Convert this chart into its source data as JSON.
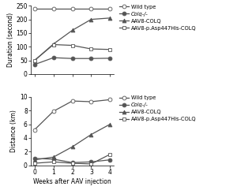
{
  "weeks": [
    0,
    1,
    2,
    3,
    4
  ],
  "duration": {
    "wild_type": [
      240,
      240,
      240,
      240,
      240
    ],
    "colq_ko": [
      35,
      60,
      57,
      57,
      58
    ],
    "aav8_colq": [
      50,
      110,
      160,
      200,
      205
    ],
    "aav8_mut": [
      50,
      108,
      105,
      92,
      90
    ]
  },
  "distance": {
    "wild_type": [
      5.2,
      7.9,
      9.4,
      9.3,
      9.6
    ],
    "colq_ko": [
      1.0,
      0.9,
      0.4,
      0.5,
      0.8
    ],
    "aav8_colq": [
      0.8,
      1.2,
      2.7,
      4.5,
      6.0
    ],
    "aav8_mut": [
      0.3,
      0.5,
      0.3,
      0.2,
      1.6
    ]
  },
  "duration_ylabel": "Duration (second)",
  "distance_ylabel": "Distance (km)",
  "xlabel": "Weeks after AAV injection",
  "duration_ylim": [
    0,
    250
  ],
  "duration_yticks": [
    0,
    50,
    100,
    150,
    200,
    250
  ],
  "distance_ylim": [
    0,
    10
  ],
  "distance_yticks": [
    0,
    2,
    4,
    6,
    8,
    10
  ],
  "line_color": "#555555",
  "bg_color": "#ffffff",
  "legend_labels": [
    "Wild type",
    "Colq-/-",
    "AAV8-COLQ",
    "AAV8-p.Asp447His-COLQ"
  ],
  "legend_italic": [
    false,
    true,
    false,
    false
  ]
}
